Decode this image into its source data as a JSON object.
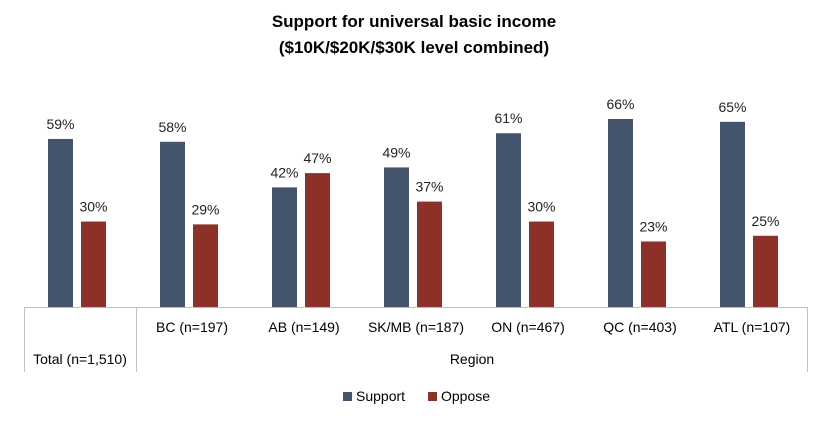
{
  "chart_data": {
    "type": "bar",
    "title": "Support for universal basic income",
    "subtitle": "($10K/$20K/$30K level combined)",
    "categories": [
      "",
      "BC (n=197)",
      "AB (n=149)",
      "SK/MB (n=187)",
      "ON (n=467)",
      "QC (n=403)",
      "ATL (n=107)"
    ],
    "group_labels": [
      "Total (n=1,510)",
      "Region"
    ],
    "series": [
      {
        "name": "Support",
        "color": "#44546a",
        "values": [
          59,
          58,
          42,
          49,
          61,
          66,
          65
        ],
        "labels": [
          "59%",
          "58%",
          "42%",
          "49%",
          "61%",
          "66%",
          "65%"
        ]
      },
      {
        "name": "Oppose",
        "color": "#8b3128",
        "values": [
          30,
          29,
          47,
          37,
          30,
          23,
          25
        ],
        "labels": [
          "30%",
          "29%",
          "47%",
          "37%",
          "30%",
          "23%",
          "25%"
        ]
      }
    ],
    "ylim": [
      0,
      70
    ],
    "grid": false,
    "legend_position": "bottom"
  }
}
